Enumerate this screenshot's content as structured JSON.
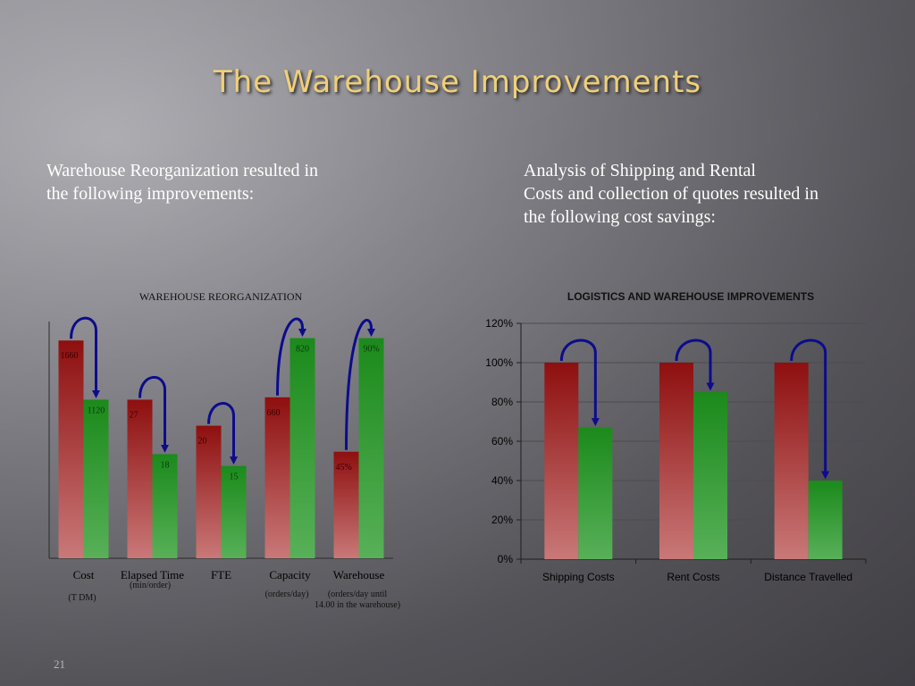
{
  "slide": {
    "title": "The Warehouse Improvements",
    "left_text": [
      "Warehouse Reorganization resulted in",
      "the following improvements:"
    ],
    "right_text": [
      "Analysis of Shipping and Rental",
      "Costs and collection of quotes resulted in",
      "the following cost savings:"
    ],
    "page_number": "21"
  },
  "colors": {
    "before_top": "#8e0f0f",
    "before_bottom": "#c97878",
    "after_top": "#1b8a1b",
    "after_bottom": "#58b058",
    "arrow": "#0c0c8c",
    "title": "#f0cf7a"
  },
  "chart_data": [
    {
      "type": "bar",
      "title": "WAREHOUSE REORGANIZATION",
      "categories": [
        "Cost",
        "Elapsed Time",
        "FTE",
        "Capacity",
        "Warehouse"
      ],
      "category_notes": [
        "(T DM)",
        "(min/order)",
        "",
        "(orders/day)",
        "(orders/day until 14.00 in the warehouse)"
      ],
      "series": [
        {
          "values": [
            1660,
            27,
            20,
            660,
            45
          ],
          "labels": [
            "1660",
            "27",
            "20",
            "660",
            "45%"
          ]
        },
        {
          "values": [
            1120,
            18,
            15,
            820,
            90
          ],
          "labels": [
            "1120",
            "18",
            "15",
            "820",
            "90%"
          ]
        }
      ],
      "relative_height": [
        [
          0.92,
          0.67
        ],
        [
          0.67,
          0.44
        ],
        [
          0.56,
          0.39
        ],
        [
          0.68,
          0.93
        ],
        [
          0.45,
          0.93
        ]
      ],
      "arrows": true,
      "grid": false,
      "legend": "none"
    },
    {
      "type": "bar",
      "title": "LOGISTICS AND WAREHOUSE IMPROVEMENTS",
      "categories": [
        "Shipping Costs",
        "Rent Costs",
        "Distance Travelled"
      ],
      "series": [
        {
          "values": [
            100,
            100,
            100
          ]
        },
        {
          "values": [
            67,
            85,
            40
          ]
        }
      ],
      "ylim": [
        0,
        120
      ],
      "yticks": [
        "0%",
        "20%",
        "40%",
        "60%",
        "80%",
        "100%",
        "120%"
      ],
      "arrows": true,
      "grid": true,
      "legend": "none"
    }
  ]
}
